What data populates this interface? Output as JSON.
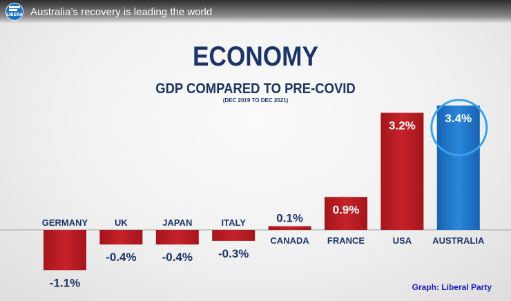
{
  "video": {
    "title": "Australia’s recovery is leading the world",
    "logo_text": "LIBERAL",
    "logo_icon": "liberal-party-logo"
  },
  "headline": {
    "title": "ECONOMY",
    "subtitle": "GDP COMPARED TO PRE-COVID",
    "period": "(DEC 2019 TO DEC 2021)"
  },
  "credit": "Graph: Liberal Party",
  "colors": {
    "negative_bar": "#c01f25",
    "positive_bar": "#c01f25",
    "highlight_bar": "#1e73c8",
    "label_text": "#1b3466",
    "value_text": "#ffffff"
  },
  "chart_data": {
    "type": "bar",
    "categories": [
      "GERMANY",
      "UK",
      "JAPAN",
      "ITALY",
      "CANADA",
      "FRANCE",
      "USA",
      "AUSTRALIA"
    ],
    "values": [
      -1.1,
      -0.4,
      -0.4,
      -0.3,
      0.1,
      0.9,
      3.2,
      3.4
    ],
    "value_labels": [
      "-1.1%",
      "-0.4%",
      "-0.4%",
      "-0.3%",
      "0.1%",
      "0.9%",
      "3.2%",
      "3.4%"
    ],
    "highlight": "AUSTRALIA",
    "title": "ECONOMY",
    "subtitle": "GDP COMPARED TO PRE-COVID",
    "xlabel": "",
    "ylabel": "",
    "grid": false
  }
}
